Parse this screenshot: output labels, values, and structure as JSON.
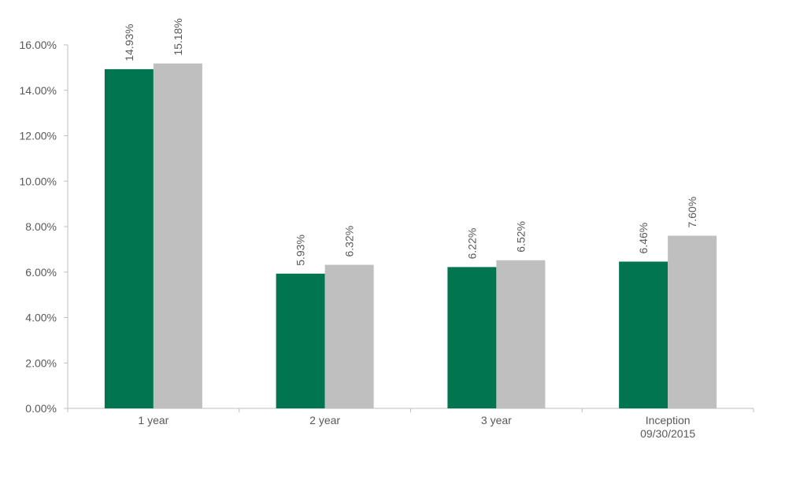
{
  "chart_data": {
    "type": "bar",
    "title": "",
    "xlabel": "",
    "ylabel": "",
    "categories": [
      [
        "1 year"
      ],
      [
        "2 year"
      ],
      [
        "3 year"
      ],
      [
        "Inception",
        "09/30/2015"
      ]
    ],
    "series": [
      {
        "color": "#00754f",
        "values": [
          14.93,
          5.93,
          6.22,
          6.46
        ],
        "labels": [
          "14.93%",
          "5.93%",
          "6.22%",
          "6.46%"
        ]
      },
      {
        "color": "#bfbfbf",
        "values": [
          15.18,
          6.32,
          6.52,
          7.6
        ],
        "labels": [
          "15.18%",
          "6.32%",
          "6.52%",
          "7.60%"
        ]
      }
    ],
    "ylim": [
      0,
      16
    ],
    "yticks": [
      0,
      2,
      4,
      6,
      8,
      10,
      12,
      14,
      16
    ],
    "ytick_labels": [
      "0.00%",
      "2.00%",
      "4.00%",
      "6.00%",
      "8.00%",
      "10.00%",
      "12.00%",
      "14.00%",
      "16.00%"
    ],
    "grid": false,
    "legend": "none"
  }
}
